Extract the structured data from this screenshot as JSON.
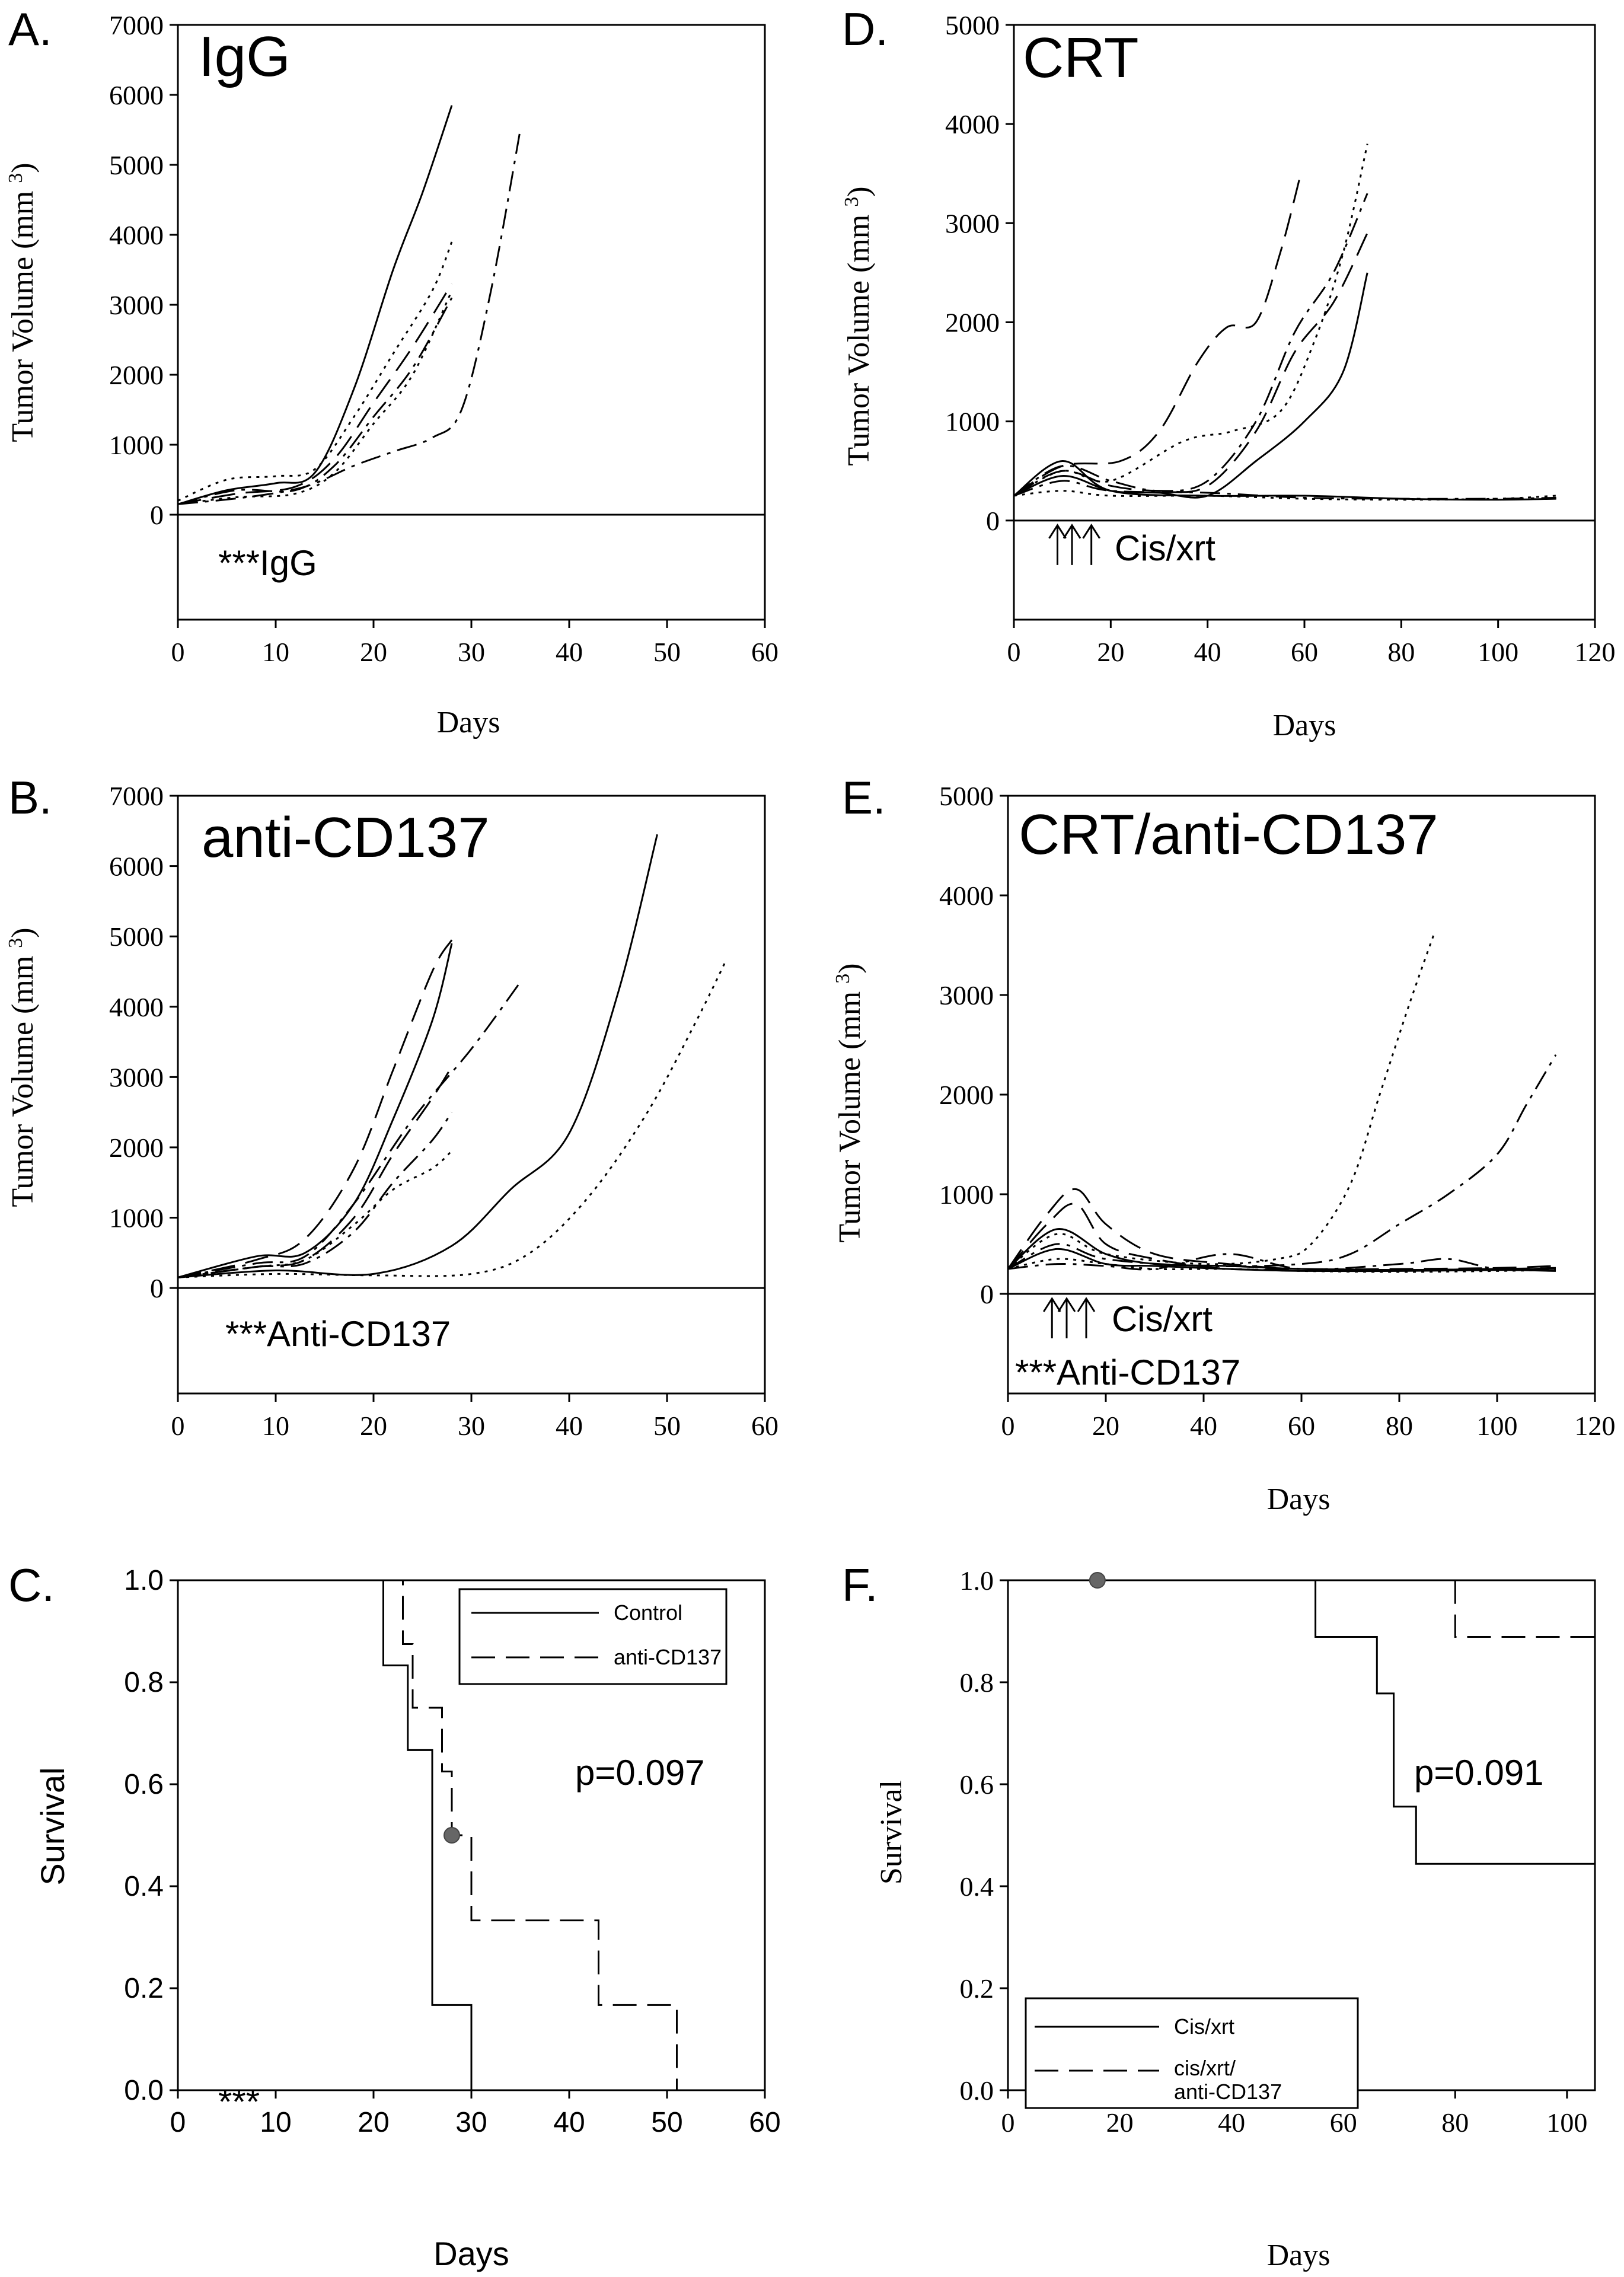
{
  "panels": [
    {
      "letter": "A.",
      "chart_data": {
        "type": "line",
        "title": "IgG",
        "xlabel": "Days",
        "ylabel": "Tumor Volume (mm3)",
        "xlim": [
          0,
          60
        ],
        "ylim": [
          -1500,
          7000
        ],
        "xticks": [
          0,
          10,
          20,
          30,
          40,
          50,
          60
        ],
        "yticks": [
          0,
          1000,
          2000,
          3000,
          4000,
          5000,
          6000,
          7000
        ],
        "annotation": "***IgG",
        "series": [
          {
            "dash": "solid",
            "x": [
              0,
              5,
              10,
              14,
              18,
              22,
              25,
              28
            ],
            "y": [
              150,
              350,
              450,
              600,
              1800,
              3500,
              4600,
              5850
            ]
          },
          {
            "dash": "dashdot",
            "x": [
              0,
              7,
              13,
              18,
              22,
              26,
              29,
              32,
              35
            ],
            "y": [
              150,
              250,
              400,
              700,
              900,
              1100,
              1500,
              3200,
              5500
            ]
          },
          {
            "dash": "dot",
            "x": [
              0,
              5,
              10,
              14,
              18,
              22,
              26,
              28
            ],
            "y": [
              200,
              500,
              550,
              650,
              1400,
              2300,
              3200,
              3900
            ]
          },
          {
            "dash": "dash",
            "x": [
              0,
              6,
              12,
              16,
              20,
              24,
              28
            ],
            "y": [
              150,
              300,
              400,
              800,
              1600,
              2400,
              3300
            ]
          },
          {
            "dash": "dashdot",
            "x": [
              0,
              6,
              12,
              16,
              20,
              24,
              28
            ],
            "y": [
              150,
              350,
              350,
              700,
              1400,
              2100,
              3100
            ]
          },
          {
            "dash": "dot",
            "x": [
              0,
              6,
              12,
              16,
              20,
              24,
              28
            ],
            "y": [
              150,
              250,
              300,
              600,
              1300,
              2000,
              3200
            ]
          }
        ]
      }
    },
    {
      "letter": "B.",
      "chart_data": {
        "type": "line",
        "title": "anti-CD137",
        "xlabel": "",
        "ylabel": "Tumor Volume (mm3)",
        "xlim": [
          0,
          60
        ],
        "ylim": [
          -1500,
          7000
        ],
        "xticks": [
          0,
          10,
          20,
          30,
          40,
          50,
          60
        ],
        "yticks": [
          0,
          1000,
          2000,
          3000,
          4000,
          5000,
          6000,
          7000
        ],
        "annotation": "***Anti-CD137",
        "series": [
          {
            "dash": "solid",
            "x": [
              0,
              10,
              20,
              28,
              34,
              40,
              45,
              49
            ],
            "y": [
              150,
              250,
              200,
              600,
              1400,
              2200,
              4200,
              6450
            ]
          },
          {
            "dash": "dot",
            "x": [
              0,
              10,
              20,
              30,
              36,
              42,
              48,
              53,
              56
            ],
            "y": [
              150,
              200,
              180,
              200,
              500,
              1300,
              2500,
              3800,
              4650
            ]
          },
          {
            "dash": "dash",
            "x": [
              0,
              8,
              13,
              18,
              22,
              26,
              28
            ],
            "y": [
              150,
              400,
              700,
              1700,
              3100,
              4500,
              4950
            ]
          },
          {
            "dash": "solid",
            "x": [
              0,
              8,
              13,
              18,
              22,
              26,
              28
            ],
            "y": [
              150,
              450,
              500,
              1200,
              2400,
              3800,
              4900
            ]
          },
          {
            "dash": "dashdot",
            "x": [
              0,
              8,
              13,
              18,
              24,
              30,
              35
            ],
            "y": [
              150,
              350,
              450,
              1200,
              2400,
              3400,
              4350
            ]
          },
          {
            "dash": "dash",
            "x": [
              0,
              8,
              13,
              18,
              22,
              26,
              28
            ],
            "y": [
              150,
              300,
              400,
              1000,
              1900,
              2700,
              3150
            ]
          },
          {
            "dash": "dashdot",
            "x": [
              0,
              8,
              13,
              18,
              22,
              26,
              28
            ],
            "y": [
              150,
              300,
              350,
              800,
              1500,
              2100,
              2500
            ]
          },
          {
            "dash": "dot",
            "x": [
              0,
              8,
              13,
              18,
              22,
              26,
              28
            ],
            "y": [
              150,
              300,
              400,
              900,
              1400,
              1700,
              1950
            ]
          }
        ]
      }
    },
    {
      "letter": "C.",
      "chart_data": {
        "type": "line",
        "title": "",
        "xlabel": "Days",
        "ylabel": "Survival",
        "xlim": [
          0,
          60
        ],
        "ylim": [
          0,
          1.0
        ],
        "xticks": [
          0,
          10,
          20,
          30,
          40,
          50,
          60
        ],
        "yticks": [
          0.0,
          0.2,
          0.4,
          0.6,
          0.8,
          1.0
        ],
        "annotation": "***",
        "p_value": "p=0.097",
        "legend": [
          "Control",
          "anti-CD137"
        ],
        "censor_marks": [
          {
            "x": 28,
            "y": 0.5
          }
        ],
        "series": [
          {
            "name": "Control",
            "dash": "solid",
            "step": true,
            "x": [
              0,
              21,
              21,
              23.5,
              23.5,
              26,
              26,
              30,
              30
            ],
            "y": [
              1.0,
              1.0,
              0.833,
              0.833,
              0.667,
              0.667,
              0.167,
              0.167,
              0.0
            ]
          },
          {
            "name": "anti-CD137",
            "dash": "dash",
            "step": true,
            "x": [
              0,
              23,
              23,
              24,
              24,
              27,
              27,
              28,
              28,
              30,
              30,
              43,
              43,
              51,
              51
            ],
            "y": [
              1.0,
              1.0,
              0.875,
              0.875,
              0.75,
              0.75,
              0.625,
              0.625,
              0.5,
              0.5,
              0.333,
              0.333,
              0.167,
              0.167,
              0.0
            ]
          }
        ]
      }
    },
    {
      "letter": "D.",
      "chart_data": {
        "type": "line",
        "title": "CRT",
        "xlabel": "Days",
        "ylabel": "Tumor Volume (mm3)",
        "xlim": [
          0,
          120
        ],
        "ylim": [
          -1000,
          5000
        ],
        "xticks": [
          0,
          20,
          40,
          60,
          80,
          100,
          120
        ],
        "yticks": [
          0,
          1000,
          2000,
          3000,
          4000,
          5000
        ],
        "annotation": "Cis/xrt",
        "arrows_x": [
          9,
          12,
          16
        ],
        "series": [
          {
            "dash": "dash",
            "x": [
              0,
              10,
              22,
              30,
              38,
              44,
              50,
              55,
              59
            ],
            "y": [
              250,
              550,
              600,
              900,
              1600,
              1950,
              2000,
              2700,
              3450
            ]
          },
          {
            "dash": "dot",
            "x": [
              0,
              10,
              20,
              35,
              45,
              55,
              62,
              68,
              73
            ],
            "y": [
              250,
              500,
              400,
              800,
              900,
              1100,
              1800,
              2700,
              3800
            ]
          },
          {
            "dash": "dashdot",
            "x": [
              0,
              10,
              20,
              30,
              40,
              50,
              58,
              66,
              73
            ],
            "y": [
              250,
              550,
              400,
              300,
              400,
              1000,
              1900,
              2500,
              3300
            ]
          },
          {
            "dash": "dash",
            "x": [
              0,
              10,
              20,
              30,
              40,
              50,
              58,
              66,
              73
            ],
            "y": [
              250,
              500,
              350,
              300,
              350,
              900,
              1700,
              2200,
              2900
            ]
          },
          {
            "dash": "solid",
            "x": [
              0,
              10,
              20,
              30,
              40,
              50,
              60,
              68,
              73
            ],
            "y": [
              250,
              450,
              300,
              280,
              250,
              600,
              1000,
              1500,
              2500
            ]
          },
          {
            "dash": "solid",
            "x": [
              0,
              10,
              20,
              40,
              60,
              80,
              100,
              112
            ],
            "y": [
              250,
              600,
              300,
              250,
              250,
              220,
              210,
              220
            ]
          },
          {
            "dash": "dashdot",
            "x": [
              0,
              10,
              20,
              40,
              60,
              80,
              100,
              112
            ],
            "y": [
              250,
              400,
              300,
              280,
              230,
              220,
              220,
              230
            ]
          },
          {
            "dash": "dot",
            "x": [
              0,
              10,
              20,
              40,
              60,
              80,
              100,
              112
            ],
            "y": [
              250,
              300,
              250,
              250,
              220,
              210,
              220,
              250
            ]
          }
        ]
      }
    },
    {
      "letter": "E.",
      "chart_data": {
        "type": "line",
        "title": "CRT/anti-CD137",
        "xlabel": "Days",
        "ylabel": "Tumor Volume (mm3)",
        "xlim": [
          0,
          120
        ],
        "ylim": [
          -1000,
          5000
        ],
        "xticks": [
          0,
          20,
          40,
          60,
          80,
          100,
          120
        ],
        "yticks": [
          0,
          1000,
          2000,
          3000,
          4000,
          5000
        ],
        "annotation": "Cis/xrt",
        "annotation2": "***Anti-CD137",
        "arrows_x": [
          9,
          12,
          16
        ],
        "series": [
          {
            "dash": "dot",
            "x": [
              0,
              10,
              20,
              40,
              55,
              62,
              70,
              76,
              82,
              87
            ],
            "y": [
              250,
              600,
              400,
              300,
              350,
              500,
              1100,
              2000,
              2900,
              3600
            ]
          },
          {
            "dash": "dashdot",
            "x": [
              0,
              10,
              20,
              40,
              60,
              70,
              80,
              90,
              100,
              106,
              112
            ],
            "y": [
              250,
              500,
              350,
              280,
              300,
              400,
              700,
              1000,
              1400,
              1900,
              2400
            ]
          },
          {
            "dash": "dash",
            "x": [
              0,
              8,
              14,
              20,
              30,
              45,
              60,
              80,
              100,
              112
            ],
            "y": [
              250,
              800,
              1050,
              700,
              400,
              300,
              250,
              250,
              260,
              280
            ]
          },
          {
            "dash": "dash",
            "x": [
              0,
              8,
              14,
              20,
              30,
              45,
              60,
              80,
              100,
              112
            ],
            "y": [
              250,
              700,
              900,
              500,
              350,
              250,
              250,
              240,
              250,
              260
            ]
          },
          {
            "dash": "solid",
            "x": [
              0,
              10,
              20,
              30,
              45,
              60,
              80,
              100,
              112
            ],
            "y": [
              250,
              650,
              400,
              300,
              280,
              250,
              240,
              250,
              250
            ]
          },
          {
            "dash": "solid",
            "x": [
              0,
              10,
              20,
              30,
              45,
              60,
              80,
              100,
              112
            ],
            "y": [
              250,
              450,
              300,
              280,
              250,
              230,
              230,
              240,
              230
            ]
          },
          {
            "dash": "dot",
            "x": [
              0,
              10,
              20,
              30,
              45,
              60,
              80,
              100,
              112
            ],
            "y": [
              250,
              350,
              300,
              250,
              250,
              230,
              220,
              230,
              240
            ]
          },
          {
            "dash": "dashdot",
            "x": [
              0,
              10,
              20,
              30,
              45,
              60,
              80,
              90,
              100,
              112
            ],
            "y": [
              250,
              300,
              280,
              250,
              400,
              250,
              300,
              350,
              250,
              260
            ]
          }
        ]
      }
    },
    {
      "letter": "F.",
      "chart_data": {
        "type": "line",
        "title": "",
        "xlabel": "Days",
        "ylabel": "Survival",
        "xlim": [
          0,
          105
        ],
        "ylim": [
          0,
          1.0
        ],
        "xticks": [
          0,
          20,
          40,
          60,
          80,
          100
        ],
        "yticks": [
          0.0,
          0.2,
          0.4,
          0.6,
          0.8,
          1.0
        ],
        "p_value": "p=0.091",
        "legend": [
          "Cis/xrt",
          "cis/xrt/",
          "anti-CD137"
        ],
        "censor_marks": [
          {
            "x": 16,
            "y": 1.0
          }
        ],
        "series": [
          {
            "name": "Cis/xrt",
            "dash": "solid",
            "step": true,
            "x": [
              0,
              55,
              55,
              66,
              66,
              69,
              69,
              73,
              73,
              105
            ],
            "y": [
              1.0,
              1.0,
              0.889,
              0.889,
              0.778,
              0.778,
              0.556,
              0.556,
              0.444,
              0.444
            ]
          },
          {
            "name": "cis/xrt/ anti-CD137",
            "dash": "dash",
            "step": true,
            "x": [
              0,
              80,
              80,
              105
            ],
            "y": [
              1.0,
              1.0,
              0.889,
              0.889
            ]
          }
        ]
      }
    }
  ]
}
